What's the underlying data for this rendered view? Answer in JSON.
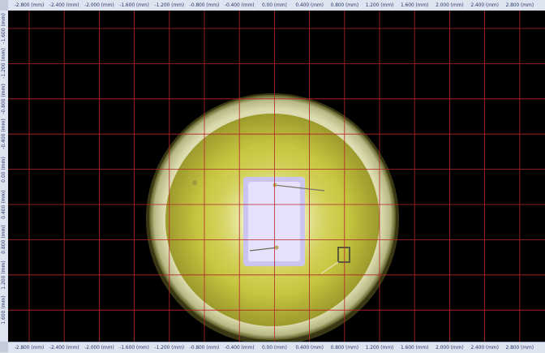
{
  "viewer": {
    "x_axis_labels": [
      "-2.800 (mm)",
      "-2.400 (mm)",
      "-2.000 (mm)",
      "-1.600 (mm)",
      "-1.200 (mm)",
      "-0.800 (mm)",
      "-0.400 (mm)",
      "0.00 (mm)",
      "0.400 (mm)",
      "0.800 (mm)",
      "1.200 (mm)",
      "1.600 (mm)",
      "2.000 (mm)",
      "2.400 (mm)",
      "2.800 (mm)"
    ],
    "y_axis_labels": [
      "-1.600 (mm)",
      "-1.200 (mm)",
      "-0.800 (mm)",
      "-0.400 (mm)",
      "0.00 (mm)",
      "0.400 (mm)",
      "0.800 (mm)",
      "1.200 (mm)",
      "1.600 (mm)"
    ],
    "grid_color": "#b3262a",
    "background_color": "#000000",
    "ring_color": "#cdd2a2",
    "phosphor_color": "#c9c838",
    "die_color": "#d8d2f4"
  }
}
